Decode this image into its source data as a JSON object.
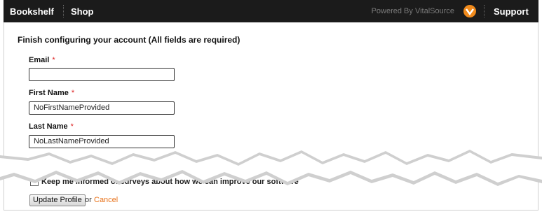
{
  "nav": {
    "links": [
      "Bookshelf",
      "Shop"
    ],
    "powered_by": "Powered By VitalSource",
    "support": "Support"
  },
  "form": {
    "heading": "Finish configuring your account (All fields are required)",
    "required_marker": "*",
    "fields": [
      {
        "label": "Email"
      },
      {
        "label": "First Name",
        "value": "NoFirstNameProvided"
      },
      {
        "label": "Last Name",
        "value": "NoLastNameProvided"
      }
    ],
    "checkbox_label": "Keep me informed of surveys about how we can improve our software",
    "submit": "Update Profile",
    "or": "or",
    "cancel": "Cancel"
  }
}
